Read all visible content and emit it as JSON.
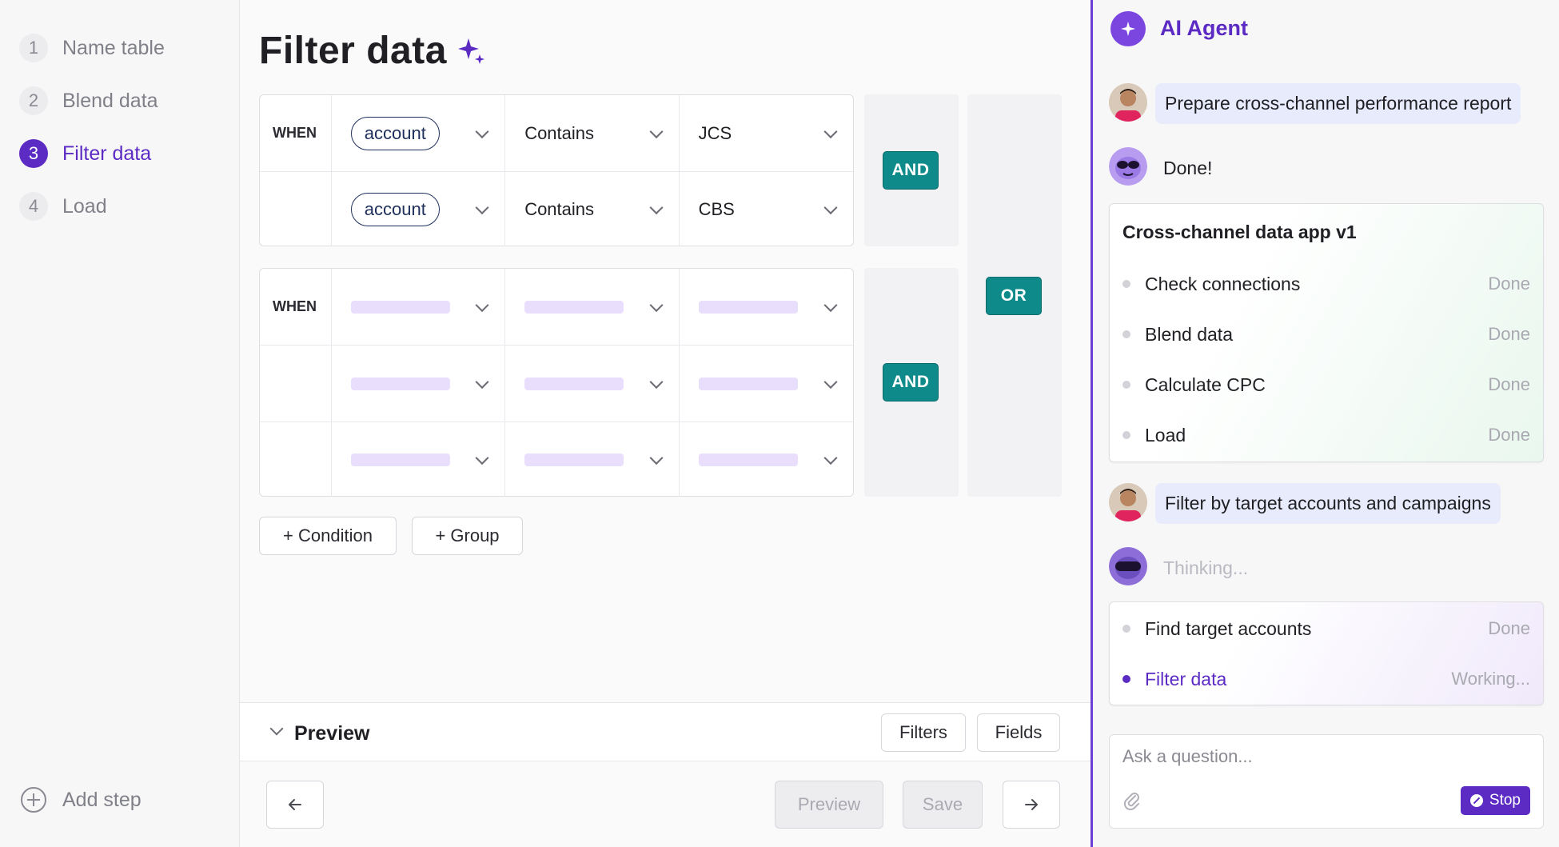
{
  "sidebar": {
    "steps": [
      {
        "num": "1",
        "label": "Name table"
      },
      {
        "num": "2",
        "label": "Blend data"
      },
      {
        "num": "3",
        "label": "Filter data"
      },
      {
        "num": "4",
        "label": "Load"
      }
    ],
    "active_step": 3,
    "add_step_label": "Add step"
  },
  "main": {
    "title": "Filter data",
    "groups": [
      {
        "when_label": "WHEN",
        "rows": [
          {
            "field": "account",
            "operator": "Contains",
            "value": "JCS"
          },
          {
            "field": "account",
            "operator": "Contains",
            "value": "CBS"
          }
        ],
        "logic": "AND"
      },
      {
        "when_label": "WHEN",
        "rows": [
          {
            "loading": true
          },
          {
            "loading": true
          },
          {
            "loading": true
          }
        ],
        "logic": "AND"
      }
    ],
    "group_logic": "OR",
    "add_condition_label": "+ Condition",
    "add_group_label": "+ Group",
    "preview": {
      "title": "Preview",
      "filters_label": "Filters",
      "fields_label": "Fields"
    },
    "footer": {
      "preview_label": "Preview",
      "save_label": "Save",
      "back_icon": "arrow-left-icon",
      "next_icon": "arrow-right-icon"
    }
  },
  "agent": {
    "title": "AI Agent",
    "messages": [
      {
        "role": "user",
        "text": "Prepare cross-channel performance report"
      },
      {
        "role": "bot",
        "text": "Done!"
      },
      {
        "role": "user",
        "text": "Filter by target accounts and campaigns"
      },
      {
        "role": "bot",
        "text": "Thinking..."
      }
    ],
    "plan_card": {
      "title": "Cross-channel data app v1",
      "tasks": [
        {
          "name": "Check connections",
          "status": "Done"
        },
        {
          "name": "Blend data",
          "status": "Done"
        },
        {
          "name": "Calculate CPC",
          "status": "Done"
        },
        {
          "name": "Load",
          "status": "Done"
        }
      ]
    },
    "work_card": {
      "tasks": [
        {
          "name": "Find target accounts",
          "status": "Done"
        },
        {
          "name": "Filter data",
          "status": "Working..."
        }
      ]
    },
    "ask": {
      "placeholder": "Ask a question...",
      "stop_label": "Stop"
    }
  },
  "colors": {
    "accent": "#5b2bc4",
    "logic": "#0e8a8a",
    "skeleton": "#e9defb"
  }
}
